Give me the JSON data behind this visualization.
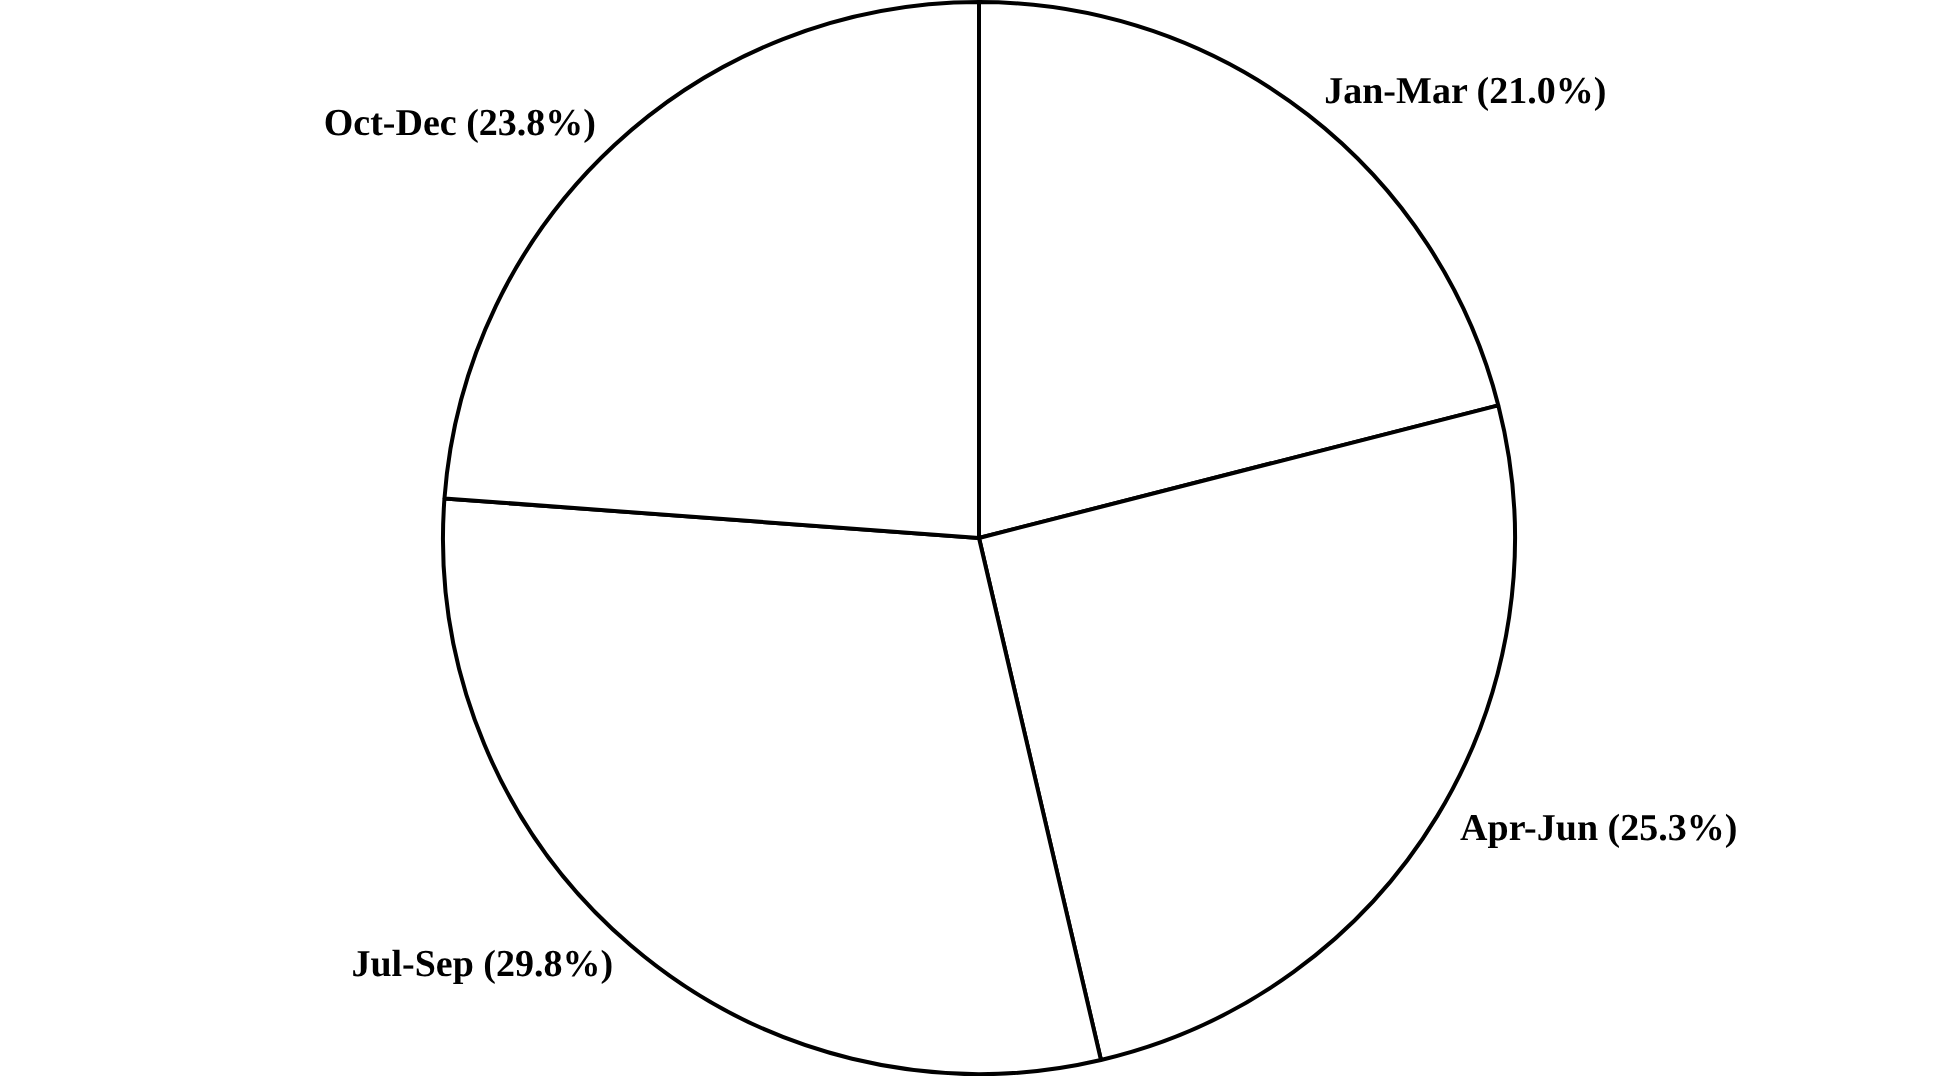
{
  "chart_data": {
    "type": "pie",
    "categories": [
      "Jan-Mar",
      "Apr-Jun",
      "Jul-Sep",
      "Oct-Dec"
    ],
    "values": [
      21.0,
      25.3,
      29.8,
      23.8
    ],
    "value_labels": [
      "(21.0%)",
      "(25.3%)",
      "(29.8%)",
      "(23.8%)"
    ],
    "colors": [
      "#ffffff",
      "#ffffff",
      "#ffffff",
      "#ffffff"
    ],
    "legend": false
  }
}
